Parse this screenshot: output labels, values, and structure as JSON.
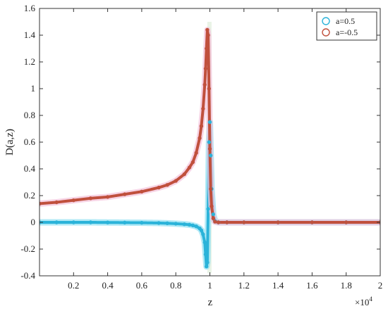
{
  "chart_data": {
    "type": "scatter",
    "title": "",
    "xlabel": "z",
    "ylabel": "D(a,z)",
    "x_multiplier_label": "×10",
    "x_multiplier_exp": "4",
    "xlim": [
      0,
      2
    ],
    "ylim": [
      -0.4,
      1.6
    ],
    "xticks": [
      0.2,
      0.4,
      0.6,
      0.8,
      1,
      1.2,
      1.4,
      1.6,
      1.8,
      2
    ],
    "xtick_labels": [
      "0.2",
      "0.4",
      "0.6",
      "0.8",
      "1",
      "1.2",
      "1.4",
      "1.6",
      "1.8",
      "2"
    ],
    "yticks": [
      -0.4,
      -0.2,
      0,
      0.2,
      0.4,
      0.6,
      0.8,
      1,
      1.2,
      1.4,
      1.6
    ],
    "ytick_labels": [
      "-0.4",
      "-0.2",
      "0",
      "0.2",
      "0.4",
      "0.6",
      "0.8",
      "1",
      "1.2",
      "1.4",
      "1.6"
    ],
    "grid": false,
    "legend_position": "top-right",
    "series": [
      {
        "name": "a=0.5",
        "color": "#2bb3d9",
        "marker": "circle",
        "x": [
          0.0,
          0.1,
          0.2,
          0.3,
          0.4,
          0.5,
          0.6,
          0.7,
          0.75,
          0.8,
          0.85,
          0.88,
          0.9,
          0.92,
          0.94,
          0.95,
          0.96,
          0.97,
          0.975,
          0.98,
          0.985,
          0.99,
          0.995,
          1.0,
          1.005,
          1.01,
          1.02,
          1.03,
          1.05,
          1.1,
          1.2,
          1.4,
          1.6,
          1.8,
          2.0
        ],
        "y": [
          0.0,
          0.0,
          0.0,
          0.0,
          -0.001,
          -0.002,
          -0.003,
          -0.005,
          -0.007,
          -0.01,
          -0.014,
          -0.018,
          -0.023,
          -0.03,
          -0.045,
          -0.06,
          -0.09,
          -0.15,
          -0.24,
          -0.33,
          -0.3,
          0.1,
          0.6,
          0.75,
          0.5,
          0.25,
          0.06,
          0.01,
          0.0,
          0.0,
          0.0,
          0.0,
          0.0,
          0.0,
          0.0
        ]
      },
      {
        "name": "a=-0.5",
        "color": "#c0503d",
        "marker": "circle",
        "x": [
          0.0,
          0.1,
          0.2,
          0.3,
          0.4,
          0.5,
          0.6,
          0.7,
          0.75,
          0.8,
          0.85,
          0.88,
          0.9,
          0.92,
          0.94,
          0.95,
          0.96,
          0.97,
          0.975,
          0.98,
          0.985,
          0.99,
          0.995,
          1.0,
          1.005,
          1.01,
          1.02,
          1.03,
          1.05,
          1.1,
          1.2,
          1.4,
          1.6,
          1.8,
          2.0
        ],
        "y": [
          0.14,
          0.15,
          0.165,
          0.18,
          0.19,
          0.21,
          0.23,
          0.26,
          0.28,
          0.31,
          0.36,
          0.41,
          0.45,
          0.52,
          0.63,
          0.72,
          0.85,
          1.03,
          1.15,
          1.3,
          1.44,
          1.4,
          1.0,
          0.55,
          0.25,
          0.12,
          0.03,
          0.005,
          0.0,
          0.0,
          0.0,
          0.0,
          0.0,
          0.0,
          0.0
        ]
      }
    ]
  },
  "colors": {
    "blue_glow": "#8fe0f2",
    "red_glow": "#f3c2da",
    "peak_band": "#cfe4c8"
  }
}
